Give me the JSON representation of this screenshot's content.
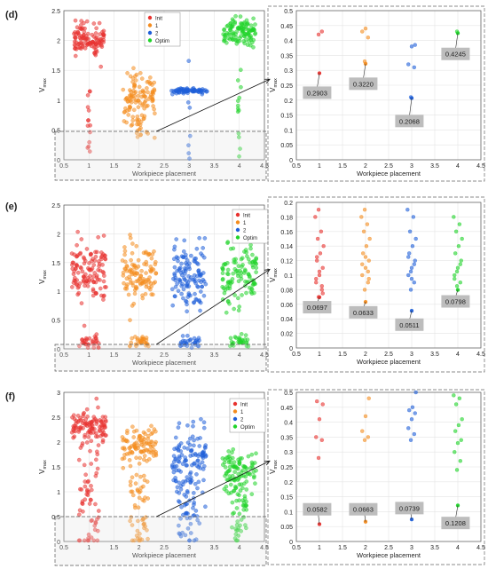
{
  "panels": [
    {
      "label": "(d)",
      "colors": {
        "Init": "#e8322f",
        "1": "#f48c1e",
        "2": "#1f5fd8",
        "Optim": "#20d42a"
      },
      "main": {
        "ylabel": "V",
        "ylabel_sub": "max",
        "xlabel": "Workpiece placement",
        "xlim": [
          0.5,
          4.5
        ],
        "ylim": [
          0,
          2.5
        ],
        "xticks": [
          "0.5",
          "1",
          "1.5",
          "2",
          "2.5",
          "3",
          "3.5",
          "4",
          "4.5"
        ],
        "yticks": [
          "0",
          "0.5",
          "1",
          "1.5",
          "2",
          "2.5"
        ],
        "legend": [
          "Init",
          "1",
          "2",
          "Optim"
        ],
        "clusters": [
          {
            "series": "Init",
            "x": 1,
            "center": 2.0,
            "spread": 0.13,
            "width": 0.3,
            "n": 110
          },
          {
            "series": "Init",
            "x": 1,
            "center": 0.7,
            "spread": 0.45,
            "width": 0.03,
            "n": 14
          },
          {
            "series": "1",
            "x": 2,
            "center": 1.05,
            "spread": 0.22,
            "width": 0.32,
            "n": 110
          },
          {
            "series": "1",
            "x": 2,
            "center": 0.45,
            "spread": 0.14,
            "width": 0.05,
            "n": 12
          },
          {
            "series": "2",
            "x": 3,
            "center": 1.16,
            "spread": 0.02,
            "width": 0.36,
            "n": 70
          },
          {
            "series": "2",
            "x": 3,
            "center": 0.7,
            "spread": 0.4,
            "width": 0.03,
            "n": 8
          },
          {
            "series": "Optim",
            "x": 4,
            "center": 2.12,
            "spread": 0.11,
            "width": 0.32,
            "n": 110
          },
          {
            "series": "Optim",
            "x": 4,
            "center": 1.0,
            "spread": 0.45,
            "width": 0.03,
            "n": 14
          }
        ],
        "zoom_ylim": [
          0,
          0.5
        ]
      },
      "zoom": {
        "ylabel": "V",
        "ylabel_sub": "max",
        "xlabel": "Workpiece placement",
        "xlim": [
          0.5,
          4.5
        ],
        "ylim": [
          0,
          0.5
        ],
        "xticks": [
          "0.5",
          "1",
          "1.5",
          "2",
          "2.5",
          "3",
          "3.5",
          "4",
          "4.5"
        ],
        "yticks": [
          "0",
          "0.05",
          "0.1",
          "0.15",
          "0.2",
          "0.25",
          "0.3",
          "0.35",
          "0.4",
          "0.45",
          "0.5"
        ],
        "points": {
          "Init": [
            0.2903,
            0.42,
            0.43
          ],
          "1": [
            0.322,
            0.33,
            0.41,
            0.43,
            0.44
          ],
          "2": [
            0.2068,
            0.21,
            0.31,
            0.32,
            0.38,
            0.385
          ],
          "Optim": [
            0.4245,
            0.43
          ]
        },
        "callouts": [
          {
            "series": "Init",
            "x": 1,
            "y": 0.2903,
            "text": "0.2903",
            "bx": 0.95,
            "by": 0.225
          },
          {
            "series": "1",
            "x": 2,
            "y": 0.322,
            "text": "0.3220",
            "bx": 1.95,
            "by": 0.255
          },
          {
            "series": "2",
            "x": 3,
            "y": 0.2068,
            "text": "0.2068",
            "bx": 2.95,
            "by": 0.13
          },
          {
            "series": "Optim",
            "x": 4,
            "y": 0.4245,
            "text": "0.4245",
            "bx": 3.95,
            "by": 0.355
          }
        ]
      }
    },
    {
      "label": "(e)",
      "colors": {
        "Init": "#e8322f",
        "1": "#f48c1e",
        "2": "#1f5fd8",
        "Optim": "#20d42a"
      },
      "main": {
        "ylabel": "V",
        "ylabel_sub": "max",
        "xlabel": "Workpiece placement",
        "xlim": [
          0.5,
          4.5
        ],
        "ylim": [
          0,
          2.5
        ],
        "xticks": [
          "0.5",
          "1",
          "1.5",
          "2",
          "2.5",
          "3",
          "3.5",
          "4",
          "4.5"
        ],
        "yticks": [
          "0",
          "0.5",
          "1",
          "1.5",
          "2",
          "2.5"
        ],
        "legend": [
          "Init",
          "1",
          "2",
          "Optim"
        ],
        "clusters": [
          {
            "series": "Init",
            "x": 1,
            "center": 1.35,
            "spread": 0.28,
            "width": 0.34,
            "n": 120
          },
          {
            "series": "Init",
            "x": 1,
            "center": 0.12,
            "spread": 0.06,
            "width": 0.2,
            "n": 30
          },
          {
            "series": "1",
            "x": 2,
            "center": 1.3,
            "spread": 0.25,
            "width": 0.34,
            "n": 110
          },
          {
            "series": "1",
            "x": 2,
            "center": 0.12,
            "spread": 0.06,
            "width": 0.2,
            "n": 30
          },
          {
            "series": "2",
            "x": 3,
            "center": 1.3,
            "spread": 0.3,
            "width": 0.34,
            "n": 120
          },
          {
            "series": "2",
            "x": 3,
            "center": 0.12,
            "spread": 0.06,
            "width": 0.2,
            "n": 30
          },
          {
            "series": "Optim",
            "x": 4,
            "center": 1.3,
            "spread": 0.3,
            "width": 0.34,
            "n": 110
          },
          {
            "series": "Optim",
            "x": 4,
            "center": 0.12,
            "spread": 0.06,
            "width": 0.2,
            "n": 30
          }
        ],
        "zoom_ylim": [
          0,
          0.2
        ]
      },
      "zoom": {
        "ylabel": "V",
        "ylabel_sub": "max",
        "xlabel": "Workpiece placement",
        "xlim": [
          0.5,
          4.5
        ],
        "ylim": [
          0,
          0.2
        ],
        "xticks": [
          "0.5",
          "1",
          "1.5",
          "2",
          "2.5",
          "3",
          "3.5",
          "4",
          "4.5"
        ],
        "yticks": [
          "0",
          "0.02",
          "0.04",
          "0.06",
          "0.08",
          "0.1",
          "0.12",
          "0.14",
          "0.16",
          "0.18",
          "0.2"
        ],
        "points": {
          "Init": [
            0.0697,
            0.07,
            0.08,
            0.09,
            0.1,
            0.11,
            0.12,
            0.13,
            0.14,
            0.15,
            0.16,
            0.18,
            0.19,
            0.085,
            0.095,
            0.105,
            0.075,
            0.125
          ],
          "1": [
            0.0633,
            0.08,
            0.09,
            0.1,
            0.11,
            0.12,
            0.13,
            0.14,
            0.15,
            0.16,
            0.17,
            0.18,
            0.19,
            0.105,
            0.115,
            0.125,
            0.095
          ],
          "2": [
            0.0511,
            0.08,
            0.09,
            0.1,
            0.11,
            0.12,
            0.13,
            0.14,
            0.15,
            0.16,
            0.18,
            0.19,
            0.105,
            0.115,
            0.125,
            0.095
          ],
          "Optim": [
            0.0798,
            0.085,
            0.09,
            0.1,
            0.11,
            0.12,
            0.13,
            0.14,
            0.15,
            0.16,
            0.17,
            0.18,
            0.105,
            0.115,
            0.095
          ]
        },
        "callouts": [
          {
            "series": "Init",
            "x": 1,
            "y": 0.0697,
            "text": "0.0697",
            "bx": 0.95,
            "by": 0.056
          },
          {
            "series": "1",
            "x": 2,
            "y": 0.0633,
            "text": "0.0633",
            "bx": 1.95,
            "by": 0.049
          },
          {
            "series": "2",
            "x": 3,
            "y": 0.0511,
            "text": "0.0511",
            "bx": 2.95,
            "by": 0.032
          },
          {
            "series": "Optim",
            "x": 4,
            "y": 0.0798,
            "text": "0.0798",
            "bx": 3.95,
            "by": 0.064
          }
        ]
      }
    },
    {
      "label": "(f)",
      "colors": {
        "Init": "#e8322f",
        "1": "#f48c1e",
        "2": "#1f5fd8",
        "Optim": "#20d42a"
      },
      "main": {
        "ylabel": "V",
        "ylabel_sub": "max",
        "xlabel": "Workpiece placement",
        "xlim": [
          0.5,
          4.5
        ],
        "ylim": [
          0,
          3
        ],
        "xticks": [
          "0.5",
          "1",
          "1.5",
          "2",
          "2.5",
          "3",
          "3.5",
          "4",
          "4.5"
        ],
        "yticks": [
          "0",
          "0.5",
          "1",
          "1.5",
          "2",
          "2.5",
          "3"
        ],
        "legend": [
          "Init",
          "1",
          "2",
          "Optim"
        ],
        "clusters": [
          {
            "series": "Init",
            "x": 1,
            "center": 2.3,
            "spread": 0.18,
            "width": 0.34,
            "n": 100
          },
          {
            "series": "Init",
            "x": 1,
            "center": 0.9,
            "spread": 0.75,
            "width": 0.2,
            "n": 60
          },
          {
            "series": "1",
            "x": 2,
            "center": 1.95,
            "spread": 0.18,
            "width": 0.34,
            "n": 90
          },
          {
            "series": "1",
            "x": 2,
            "center": 0.8,
            "spread": 0.6,
            "width": 0.18,
            "n": 55
          },
          {
            "series": "2",
            "x": 3,
            "center": 1.5,
            "spread": 0.45,
            "width": 0.34,
            "n": 120
          },
          {
            "series": "2",
            "x": 3,
            "center": 0.5,
            "spread": 0.35,
            "width": 0.22,
            "n": 40
          },
          {
            "series": "Optim",
            "x": 4,
            "center": 1.4,
            "spread": 0.2,
            "width": 0.34,
            "n": 100
          },
          {
            "series": "Optim",
            "x": 4,
            "center": 0.6,
            "spread": 0.35,
            "width": 0.15,
            "n": 40
          }
        ],
        "zoom_ylim": [
          0,
          0.5
        ]
      },
      "zoom": {
        "ylabel": "V",
        "ylabel_sub": "max",
        "xlabel": "Workpiece placement",
        "xlim": [
          0.5,
          4.5
        ],
        "ylim": [
          0,
          0.5
        ],
        "xticks": [
          "0.5",
          "1",
          "1.5",
          "2",
          "2.5",
          "3",
          "3.5",
          "4",
          "4.5"
        ],
        "yticks": [
          "0",
          "0.05",
          "0.1",
          "0.15",
          "0.2",
          "0.25",
          "0.3",
          "0.35",
          "0.4",
          "0.45",
          "0.5"
        ],
        "points": {
          "Init": [
            0.0582,
            0.28,
            0.34,
            0.35,
            0.41,
            0.46,
            0.47
          ],
          "1": [
            0.0663,
            0.34,
            0.35,
            0.37,
            0.42,
            0.48
          ],
          "2": [
            0.0739,
            0.34,
            0.36,
            0.38,
            0.41,
            0.43,
            0.44,
            0.45,
            0.5
          ],
          "Optim": [
            0.1208,
            0.24,
            0.27,
            0.3,
            0.33,
            0.34,
            0.37,
            0.39,
            0.41,
            0.46,
            0.48,
            0.49
          ]
        },
        "callouts": [
          {
            "series": "Init",
            "x": 1,
            "y": 0.0582,
            "text": "0.0582",
            "bx": 0.95,
            "by": 0.108
          },
          {
            "series": "1",
            "x": 2,
            "y": 0.0663,
            "text": "0.0663",
            "bx": 1.95,
            "by": 0.108
          },
          {
            "series": "2",
            "x": 3,
            "y": 0.0739,
            "text": "0.0739",
            "bx": 2.95,
            "by": 0.112
          },
          {
            "series": "Optim",
            "x": 4,
            "y": 0.1208,
            "text": "0.1208",
            "bx": 3.95,
            "by": 0.062
          }
        ]
      }
    }
  ]
}
